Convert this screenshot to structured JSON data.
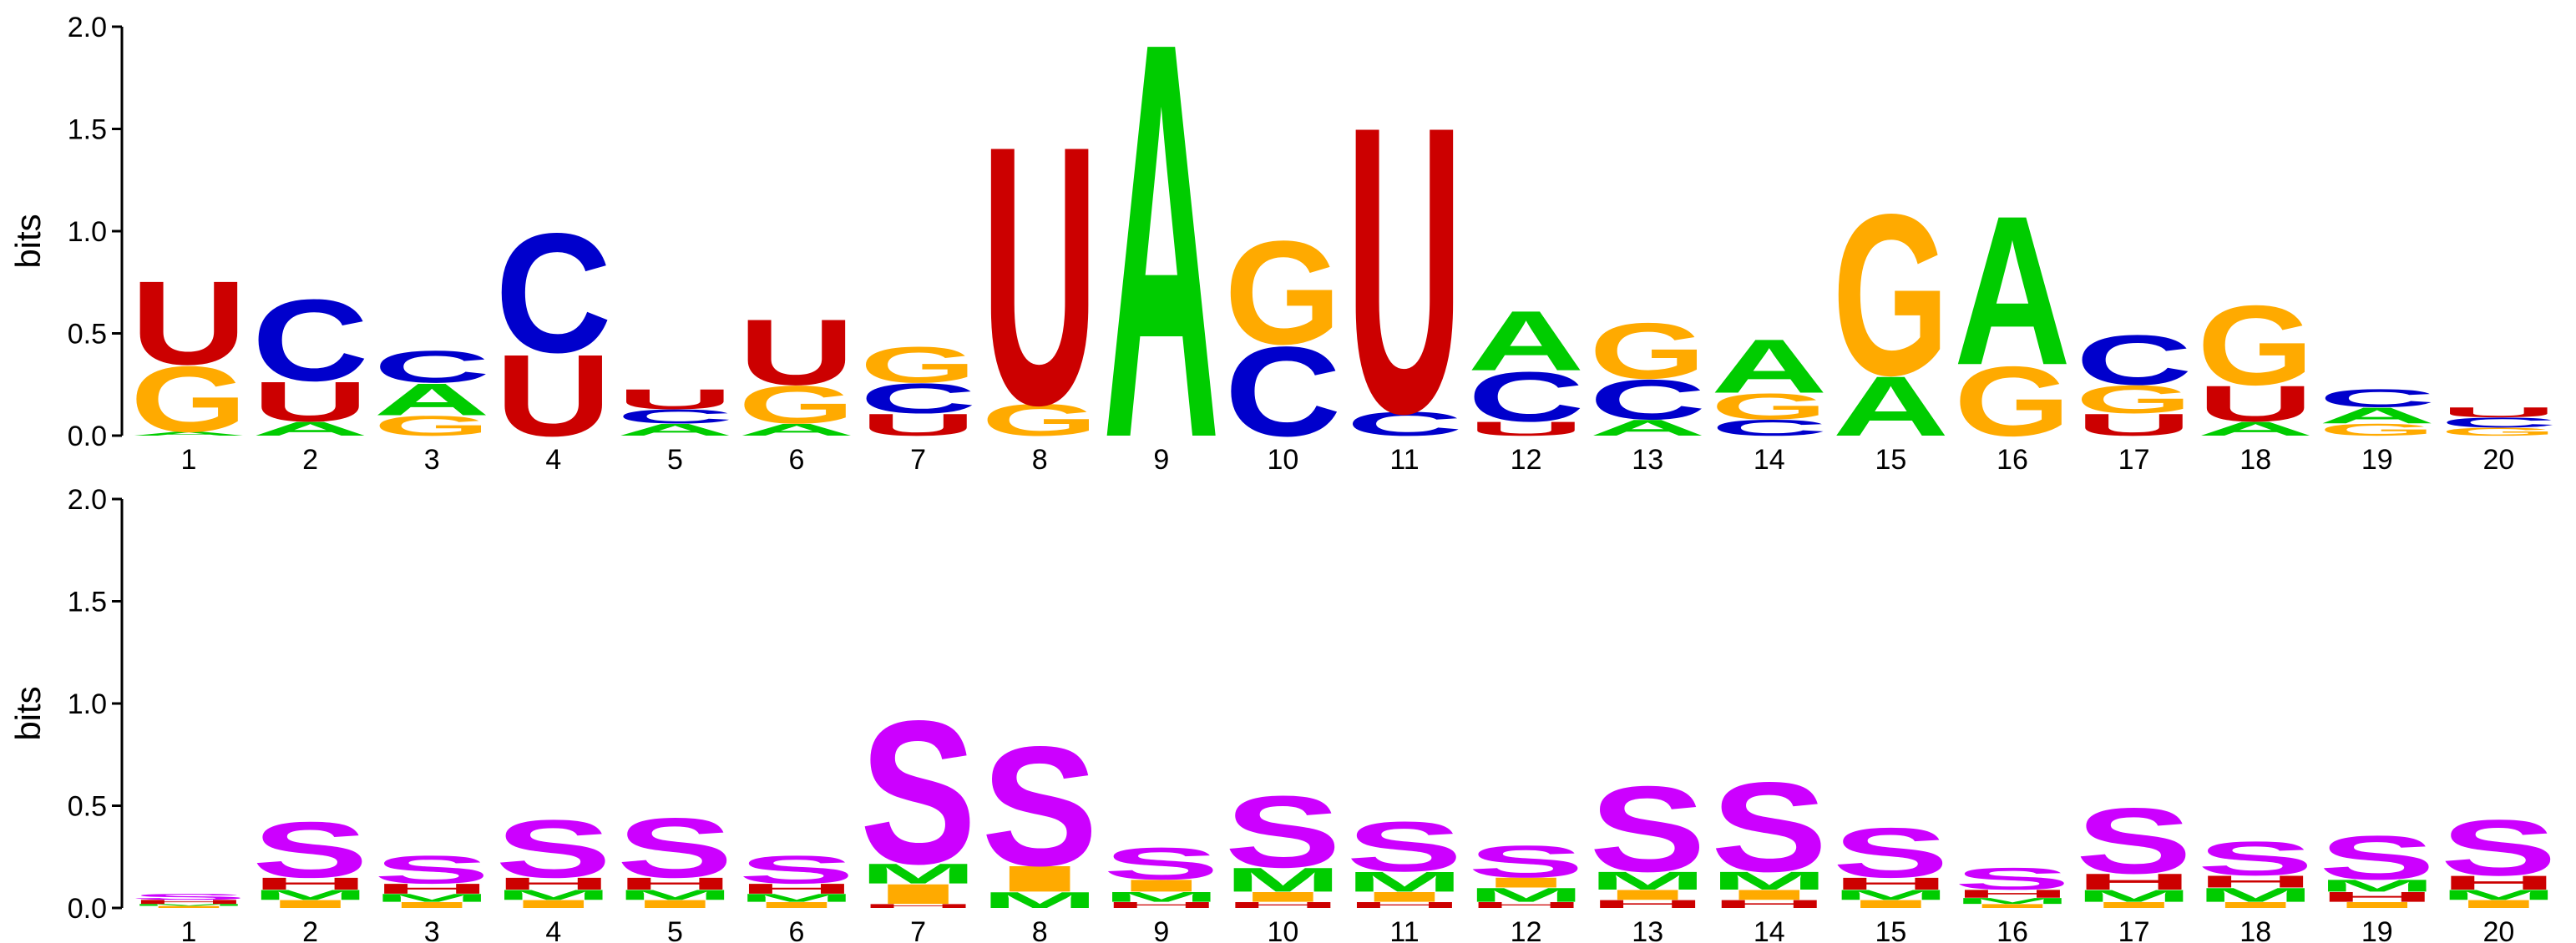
{
  "chart_data": [
    {
      "type": "sequence-logo",
      "title": "",
      "ylabel": "bits",
      "ylim": [
        0,
        2.0
      ],
      "yticks": [
        "0.0",
        "0.5",
        "1.0",
        "1.5",
        "2.0"
      ],
      "positions": [
        "1",
        "2",
        "3",
        "4",
        "5",
        "6",
        "7",
        "8",
        "9",
        "10",
        "11",
        "12",
        "13",
        "14",
        "15",
        "16",
        "17",
        "18",
        "19",
        "20"
      ],
      "colors": {
        "A": "#00cc00",
        "C": "#0000cc",
        "G": "#ffaa00",
        "U": "#cc0000"
      },
      "stacks": [
        [
          [
            "A",
            0.02
          ],
          [
            "G",
            0.33
          ],
          [
            "U",
            0.42
          ]
        ],
        [
          [
            "A",
            0.07
          ],
          [
            "U",
            0.2
          ],
          [
            "C",
            0.41
          ]
        ],
        [
          [
            "G",
            0.1
          ],
          [
            "A",
            0.16
          ],
          [
            "C",
            0.16
          ]
        ],
        [
          [
            "U",
            0.41
          ],
          [
            "C",
            0.6
          ]
        ],
        [
          [
            "A",
            0.06
          ],
          [
            "C",
            0.07
          ],
          [
            "U",
            0.1
          ]
        ],
        [
          [
            "A",
            0.06
          ],
          [
            "G",
            0.19
          ],
          [
            "U",
            0.33
          ]
        ],
        [
          [
            "U",
            0.11
          ],
          [
            "C",
            0.15
          ],
          [
            "G",
            0.18
          ]
        ],
        [
          [
            "G",
            0.16
          ],
          [
            "U",
            1.3
          ]
        ],
        [
          [
            "A",
            1.99
          ]
        ],
        [
          [
            "C",
            0.45
          ],
          [
            "G",
            0.52
          ]
        ],
        [
          [
            "C",
            0.12
          ],
          [
            "U",
            1.44
          ]
        ],
        [
          [
            "U",
            0.07
          ],
          [
            "C",
            0.25
          ],
          [
            "A",
            0.3
          ]
        ],
        [
          [
            "A",
            0.08
          ],
          [
            "C",
            0.2
          ],
          [
            "G",
            0.28
          ]
        ],
        [
          [
            "C",
            0.08
          ],
          [
            "G",
            0.13
          ],
          [
            "A",
            0.27
          ]
        ],
        [
          [
            "A",
            0.3
          ],
          [
            "G",
            0.81
          ]
        ],
        [
          [
            "G",
            0.35
          ],
          [
            "A",
            0.75
          ]
        ],
        [
          [
            "U",
            0.11
          ],
          [
            "G",
            0.14
          ],
          [
            "C",
            0.25
          ]
        ],
        [
          [
            "A",
            0.07
          ],
          [
            "U",
            0.18
          ],
          [
            "G",
            0.4
          ]
        ],
        [
          [
            "G",
            0.06
          ],
          [
            "A",
            0.08
          ],
          [
            "C",
            0.09
          ]
        ],
        [
          [
            "G",
            0.04
          ],
          [
            "C",
            0.05
          ],
          [
            "U",
            0.05
          ]
        ]
      ]
    },
    {
      "type": "sequence-logo",
      "title": "",
      "ylabel": "bits",
      "ylim": [
        0,
        2.0
      ],
      "yticks": [
        "0.0",
        "0.5",
        "1.0",
        "1.5",
        "2.0"
      ],
      "positions": [
        "1",
        "2",
        "3",
        "4",
        "5",
        "6",
        "7",
        "8",
        "9",
        "10",
        "11",
        "12",
        "13",
        "14",
        "15",
        "16",
        "17",
        "18",
        "19",
        "20"
      ],
      "colors": {
        "S": "#cc00ff",
        "M": "#00cc00",
        "I": "#ffaa00",
        "H": "#cc0000"
      },
      "stacks": [
        [
          [
            "I",
            0.01
          ],
          [
            "M",
            0.01
          ],
          [
            "H",
            0.02
          ],
          [
            "S",
            0.03
          ]
        ],
        [
          [
            "I",
            0.04
          ],
          [
            "M",
            0.05
          ],
          [
            "H",
            0.06
          ],
          [
            "S",
            0.28
          ]
        ],
        [
          [
            "I",
            0.03
          ],
          [
            "M",
            0.04
          ],
          [
            "H",
            0.05
          ],
          [
            "S",
            0.14
          ]
        ],
        [
          [
            "I",
            0.04
          ],
          [
            "M",
            0.05
          ],
          [
            "H",
            0.06
          ],
          [
            "S",
            0.29
          ]
        ],
        [
          [
            "I",
            0.04
          ],
          [
            "M",
            0.05
          ],
          [
            "H",
            0.06
          ],
          [
            "S",
            0.3
          ]
        ],
        [
          [
            "I",
            0.03
          ],
          [
            "M",
            0.04
          ],
          [
            "H",
            0.05
          ],
          [
            "S",
            0.14
          ]
        ],
        [
          [
            "H",
            0.02
          ],
          [
            "I",
            0.1
          ],
          [
            "M",
            0.1
          ],
          [
            "S",
            0.72
          ]
        ],
        [
          [
            "M",
            0.08
          ],
          [
            "I",
            0.13
          ],
          [
            "S",
            0.6
          ]
        ],
        [
          [
            "H",
            0.03
          ],
          [
            "M",
            0.05
          ],
          [
            "I",
            0.06
          ],
          [
            "S",
            0.16
          ]
        ],
        [
          [
            "H",
            0.03
          ],
          [
            "I",
            0.05
          ],
          [
            "M",
            0.12
          ],
          [
            "S",
            0.36
          ]
        ],
        [
          [
            "H",
            0.03
          ],
          [
            "I",
            0.05
          ],
          [
            "M",
            0.1
          ],
          [
            "S",
            0.25
          ]
        ],
        [
          [
            "H",
            0.03
          ],
          [
            "M",
            0.07
          ],
          [
            "I",
            0.05
          ],
          [
            "S",
            0.16
          ]
        ],
        [
          [
            "H",
            0.04
          ],
          [
            "I",
            0.05
          ],
          [
            "M",
            0.09
          ],
          [
            "S",
            0.43
          ]
        ],
        [
          [
            "H",
            0.04
          ],
          [
            "I",
            0.05
          ],
          [
            "M",
            0.09
          ],
          [
            "S",
            0.45
          ]
        ],
        [
          [
            "I",
            0.04
          ],
          [
            "M",
            0.05
          ],
          [
            "H",
            0.06
          ],
          [
            "S",
            0.25
          ]
        ],
        [
          [
            "I",
            0.02
          ],
          [
            "M",
            0.03
          ],
          [
            "H",
            0.04
          ],
          [
            "S",
            0.11
          ]
        ],
        [
          [
            "I",
            0.03
          ],
          [
            "M",
            0.06
          ],
          [
            "H",
            0.08
          ],
          [
            "S",
            0.33
          ]
        ],
        [
          [
            "I",
            0.03
          ],
          [
            "M",
            0.07
          ],
          [
            "H",
            0.06
          ],
          [
            "S",
            0.17
          ]
        ],
        [
          [
            "I",
            0.03
          ],
          [
            "H",
            0.05
          ],
          [
            "M",
            0.06
          ],
          [
            "S",
            0.22
          ]
        ],
        [
          [
            "I",
            0.04
          ],
          [
            "M",
            0.05
          ],
          [
            "H",
            0.07
          ],
          [
            "S",
            0.28
          ]
        ]
      ]
    }
  ]
}
